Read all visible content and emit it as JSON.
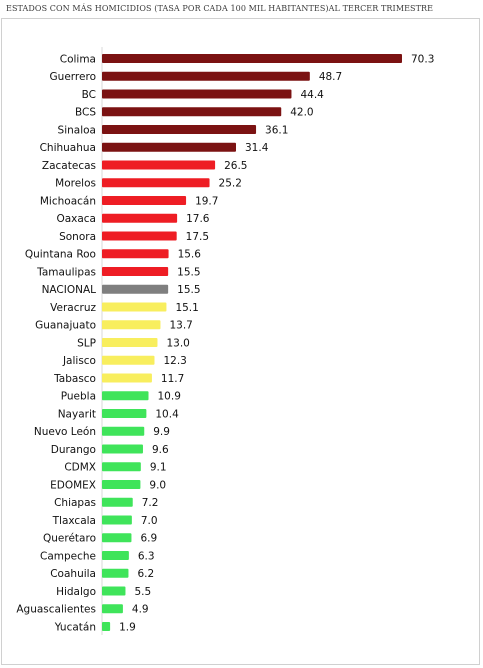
{
  "chart_data": {
    "type": "bar",
    "orientation": "horizontal",
    "title": "ESTADOS CON MÁS HOMICIDIOS (TASA POR CADA 100 MIL HABITANTES)AL TERCER TRIMESTRE",
    "xlabel": "",
    "ylabel": "",
    "xlim": [
      0,
      70.3
    ],
    "grid": false,
    "legend": "none",
    "categories": [
      "Colima",
      "Guerrero",
      "BC",
      "BCS",
      "Sinaloa",
      "Chihuahua",
      "Zacatecas",
      "Morelos",
      "Michoacán",
      "Oaxaca",
      "Sonora",
      "Quintana Roo",
      "Tamaulipas",
      "NACIONAL",
      "Veracruz",
      "Guanajuato",
      "SLP",
      "Jalisco",
      "Tabasco",
      "Puebla",
      "Nayarit",
      "Nuevo León",
      "Durango",
      "CDMX",
      "EDOMEX",
      "Chiapas",
      "Tlaxcala",
      "Querétaro",
      "Campeche",
      "Coahuila",
      "Hidalgo",
      "Aguascalientes",
      "Yucatán"
    ],
    "values": [
      70.3,
      48.7,
      44.4,
      42.0,
      36.1,
      31.4,
      26.5,
      25.2,
      19.7,
      17.6,
      17.5,
      15.6,
      15.5,
      15.5,
      15.1,
      13.7,
      13.0,
      12.3,
      11.7,
      10.9,
      10.4,
      9.9,
      9.6,
      9.1,
      9.0,
      7.2,
      7.0,
      6.9,
      6.3,
      6.2,
      5.5,
      4.9,
      1.9
    ],
    "value_labels": [
      "70.3",
      "48.7",
      "44.4",
      "42.0",
      "36.1",
      "31.4",
      "26.5",
      "25.2",
      "19.7",
      "17.6",
      "17.5",
      "15.6",
      "15.5",
      "15.5",
      "15.1",
      "13.7",
      "13.0",
      "12.3",
      "11.7",
      "10.9",
      "10.4",
      "9.9",
      "9.6",
      "9.1",
      "9.0",
      "7.2",
      "7.0",
      "6.9",
      "6.3",
      "6.2",
      "5.5",
      "4.9",
      "1.9"
    ],
    "bar_colors": [
      "#7b1212",
      "#7b1212",
      "#7b1212",
      "#7b1212",
      "#7b1212",
      "#7b1212",
      "#ee1d24",
      "#ee1d24",
      "#ee1d24",
      "#ee1d24",
      "#ee1d24",
      "#ee1d24",
      "#ee1d24",
      "#7f7f7f",
      "#f8ee5e",
      "#f8ee5e",
      "#f8ee5e",
      "#f8ee5e",
      "#f8ee5e",
      "#3fe45a",
      "#3fe45a",
      "#3fe45a",
      "#3fe45a",
      "#3fe45a",
      "#3fe45a",
      "#3fe45a",
      "#3fe45a",
      "#3fe45a",
      "#3fe45a",
      "#3fe45a",
      "#3fe45a",
      "#3fe45a",
      "#3fe45a"
    ]
  }
}
